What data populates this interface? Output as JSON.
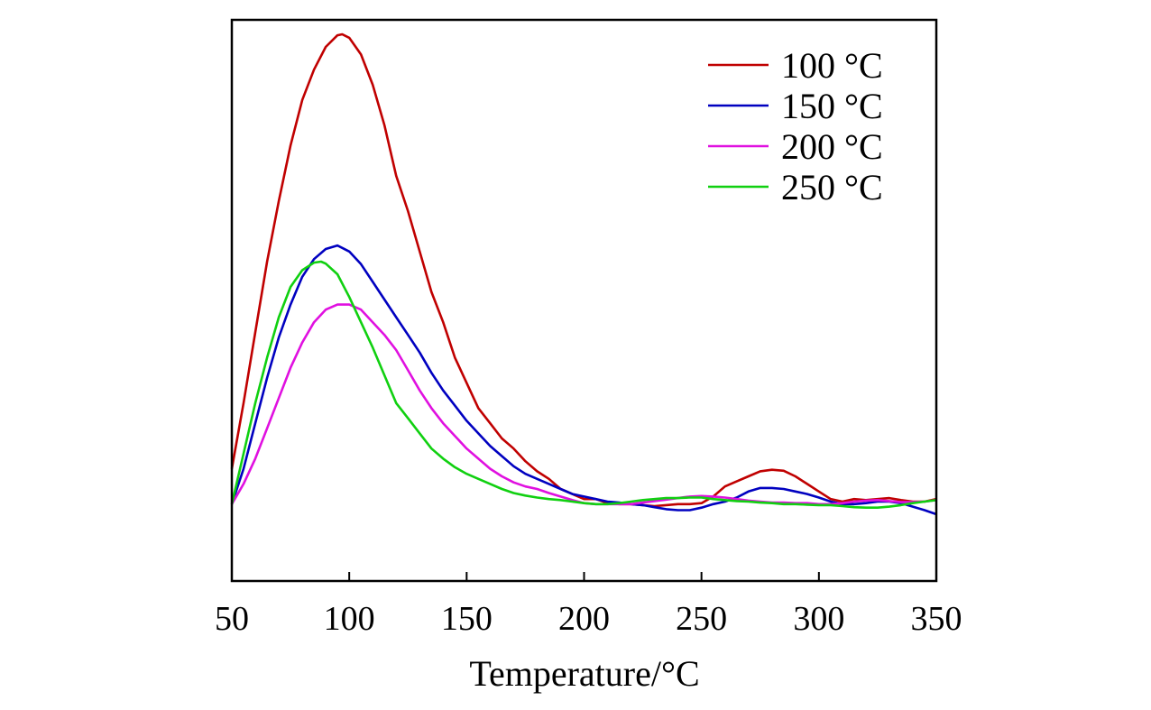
{
  "chart_data": {
    "type": "line",
    "title": "",
    "xlabel": "Temperature/°C",
    "ylabel": "",
    "xlim": [
      50,
      350
    ],
    "ylim": [
      0,
      100
    ],
    "xticks": [
      "50",
      "100",
      "150",
      "200",
      "250",
      "300",
      "350"
    ],
    "grid": false,
    "legend_position": "top-right",
    "series": [
      {
        "name": "100 °C",
        "color": "#c00000",
        "x": [
          50,
          55,
          60,
          65,
          70,
          75,
          80,
          85,
          90,
          95,
          97,
          100,
          105,
          110,
          115,
          120,
          125,
          130,
          135,
          140,
          145,
          150,
          155,
          160,
          165,
          170,
          175,
          180,
          185,
          190,
          195,
          200,
          205,
          210,
          215,
          220,
          225,
          230,
          235,
          240,
          245,
          250,
          255,
          260,
          265,
          270,
          275,
          280,
          285,
          290,
          295,
          300,
          305,
          310,
          315,
          320,
          325,
          330,
          335,
          340,
          345,
          350
        ],
        "y": [
          14,
          27,
          41,
          55,
          67,
          78,
          87,
          93,
          97.5,
          99.8,
          100,
          99.3,
          96,
          90,
          82,
          72,
          65,
          57,
          49,
          43,
          36,
          31,
          26,
          23,
          20,
          18,
          15.5,
          13.5,
          12,
          10,
          9,
          8,
          8,
          7.2,
          7,
          7,
          6.8,
          6.6,
          6.8,
          7,
          7,
          7.2,
          8.5,
          10.5,
          11.5,
          12.5,
          13.5,
          13.8,
          13.6,
          12.5,
          11,
          9.5,
          8,
          7.5,
          8,
          7.8,
          8,
          8.2,
          7.8,
          7.5,
          7.5,
          8
        ]
      },
      {
        "name": "150 °C",
        "color": "#0000c0",
        "x": [
          50,
          55,
          60,
          65,
          70,
          75,
          80,
          85,
          90,
          95,
          100,
          105,
          110,
          115,
          120,
          125,
          130,
          135,
          140,
          145,
          150,
          155,
          160,
          165,
          170,
          175,
          180,
          185,
          190,
          195,
          200,
          205,
          210,
          215,
          220,
          225,
          230,
          235,
          240,
          245,
          250,
          255,
          260,
          265,
          270,
          275,
          280,
          285,
          290,
          295,
          300,
          305,
          310,
          315,
          320,
          325,
          330,
          335,
          340,
          345,
          350
        ],
        "y": [
          7,
          14,
          23,
          32,
          40,
          46.5,
          52,
          55.5,
          57.5,
          58.2,
          57,
          54.5,
          51,
          47.5,
          44,
          40.5,
          37,
          33,
          29.5,
          26.5,
          23.5,
          21,
          18.5,
          16.5,
          14.5,
          13,
          12,
          11,
          10,
          9,
          8.5,
          8,
          7.5,
          7.3,
          7,
          6.8,
          6.4,
          6,
          5.8,
          5.8,
          6.3,
          7,
          7.5,
          8.3,
          9.5,
          10.2,
          10.2,
          10,
          9.5,
          9,
          8.3,
          7.5,
          7,
          7,
          7.2,
          7.5,
          7.5,
          7.2,
          6.5,
          5.8,
          5
        ]
      },
      {
        "name": "200 °C",
        "color": "#e010e0",
        "x": [
          50,
          55,
          60,
          65,
          70,
          75,
          80,
          85,
          90,
          95,
          100,
          105,
          110,
          115,
          120,
          125,
          130,
          135,
          140,
          145,
          150,
          155,
          160,
          165,
          170,
          175,
          180,
          185,
          190,
          195,
          200,
          205,
          210,
          215,
          220,
          225,
          230,
          235,
          240,
          245,
          250,
          255,
          260,
          265,
          270,
          275,
          280,
          285,
          290,
          295,
          300,
          305,
          310,
          315,
          320,
          325,
          330,
          335,
          340,
          345,
          350
        ],
        "y": [
          7,
          11,
          16,
          22,
          28,
          34,
          39,
          43,
          45.5,
          46.5,
          46.5,
          45.5,
          43,
          40.5,
          37.5,
          33.5,
          29.5,
          26,
          23,
          20.5,
          18,
          16,
          14,
          12.5,
          11.3,
          10.5,
          10,
          9.2,
          8.5,
          7.8,
          7.2,
          7,
          7,
          7,
          7,
          7.3,
          7.6,
          7.9,
          8.2,
          8.5,
          8.6,
          8.5,
          8.3,
          8,
          7.7,
          7.5,
          7.3,
          7.3,
          7.2,
          7.2,
          7,
          7,
          7.2,
          7.5,
          7.7,
          7.8,
          7.6,
          7.4,
          7.4,
          7.5,
          7.8
        ]
      },
      {
        "name": "250 °C",
        "color": "#10d010",
        "x": [
          50,
          55,
          60,
          65,
          70,
          75,
          80,
          85,
          88,
          90,
          95,
          100,
          105,
          110,
          115,
          120,
          125,
          130,
          135,
          140,
          145,
          150,
          155,
          160,
          165,
          170,
          175,
          180,
          185,
          190,
          195,
          200,
          205,
          210,
          215,
          220,
          225,
          230,
          235,
          240,
          245,
          250,
          255,
          260,
          265,
          270,
          275,
          280,
          285,
          290,
          295,
          300,
          305,
          310,
          315,
          320,
          325,
          330,
          335,
          340,
          345,
          350
        ],
        "y": [
          7,
          17,
          27,
          36,
          44,
          50,
          53.3,
          54.8,
          55,
          54.6,
          52.5,
          48,
          43,
          38,
          32.5,
          27,
          24,
          21,
          18,
          16,
          14.3,
          13,
          12,
          11,
          10,
          9.2,
          8.7,
          8.3,
          8,
          7.8,
          7.5,
          7.2,
          7,
          7,
          7.2,
          7.5,
          7.8,
          8,
          8.2,
          8.2,
          8.3,
          8.3,
          8,
          7.8,
          7.6,
          7.5,
          7.3,
          7.2,
          7,
          7,
          6.9,
          6.8,
          6.8,
          6.6,
          6.4,
          6.3,
          6.3,
          6.5,
          6.8,
          7.2,
          7.5,
          7.8
        ]
      }
    ]
  }
}
